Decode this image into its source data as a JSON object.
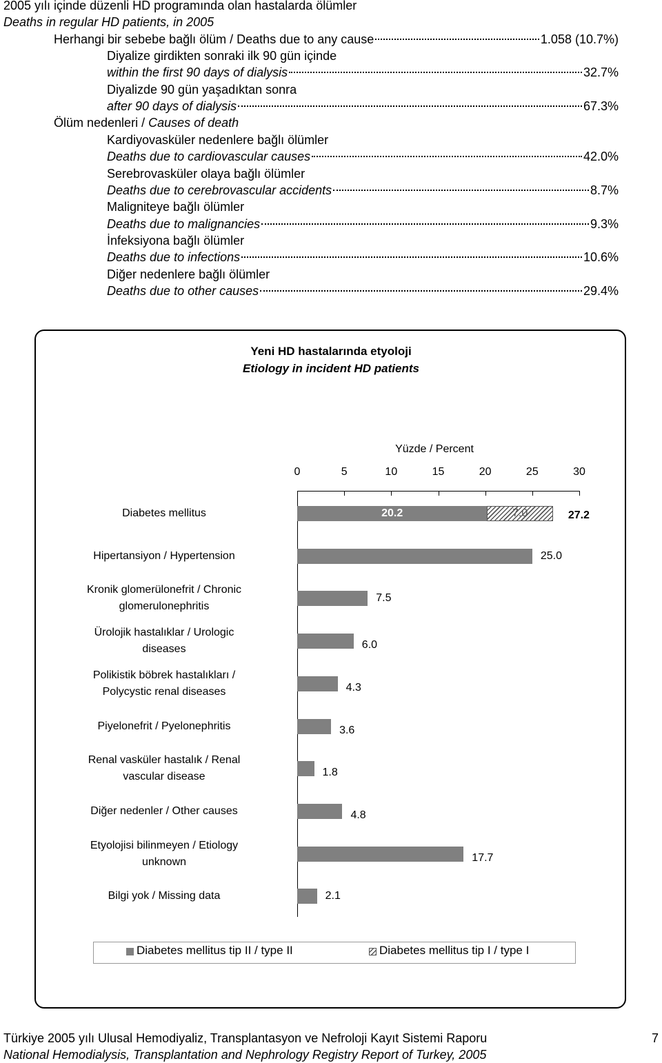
{
  "header": {
    "title": "2005 yılı içinde düzenli HD programında olan hastalarda ölümler",
    "subtitle": "Deaths in regular HD patients, in 2005"
  },
  "summary": {
    "any_cause": {
      "label": "Herhangi bir sebebe bağlı ölüm / Deaths due to any cause",
      "value": "1.058 (10.7%)"
    },
    "timing": [
      {
        "tr": "Diyalize girdikten sonraki ilk 90 gün içinde",
        "en": "within the first 90 days of dialysis",
        "value": "32.7%"
      },
      {
        "tr": "Diyalizde 90 gün yaşadıktan sonra",
        "en": "after 90 days of dialysis",
        "value": "67.3%"
      }
    ],
    "causes_heading": {
      "tr": "Ölüm nedenleri /",
      "en": "Causes of death"
    },
    "causes": [
      {
        "tr": "Kardiyovasküler nedenlere bağlı ölümler",
        "en": "Deaths due to cardiovascular causes",
        "value": "42.0%"
      },
      {
        "tr": "Serebrovasküler olaya bağlı ölümler",
        "en": "Deaths due to cerebrovascular accidents",
        "value": "8.7%"
      },
      {
        "tr": "Maligniteye bağlı ölümler",
        "en": "Deaths due to malignancies",
        "value": "9.3%"
      },
      {
        "tr": "İnfeksiyona bağlı ölümler",
        "en": "Deaths due to infections",
        "value": "10.6%"
      },
      {
        "tr": "Diğer nedenlere bağlı ölümler",
        "en": "Deaths due to other causes",
        "value": "29.4%"
      }
    ]
  },
  "chart_data": {
    "type": "bar",
    "orientation": "horizontal",
    "stacked": true,
    "title": "Yeni HD hastalarında etyoloji",
    "subtitle": "Etiology in incident HD patients",
    "xlabel": "Yüzde / Percent",
    "categories": [
      "Diabetes mellitus",
      "Hipertansiyon / Hypertension",
      "Kronik glomerülonefrit / Chronic glomerulonephritis",
      "Ürolojik hastalıklar / Urologic diseases",
      "Polikistik böbrek hastalıkları / Polycystic renal diseases",
      "Piyelonefrit / Pyelonephritis",
      "Renal vasküler hastalık / Renal vascular disease",
      "Diğer nedenler / Other causes",
      "Etyolojisi bilinmeyen / Etiology unknown",
      "Bilgi yok / Missing data"
    ],
    "series": [
      {
        "name": "Diabetes mellitus tip II / type II",
        "color": "#808080",
        "values": [
          20.2,
          25.0,
          7.5,
          6.0,
          4.3,
          3.6,
          1.8,
          4.8,
          17.7,
          2.1
        ],
        "value_labels": [
          "20.2",
          "25.0",
          "7.5",
          "6.0",
          "4.3",
          "3.6",
          "1.8",
          "4.8",
          "17.7",
          "2.1"
        ]
      },
      {
        "name": "Diabetes mellitus tip I / type I",
        "color": "hatched",
        "values": [
          7.0,
          null,
          null,
          null,
          null,
          null,
          null,
          null,
          null,
          null
        ],
        "value_labels": [
          "7.0",
          null,
          null,
          null,
          null,
          null,
          null,
          null,
          null,
          null
        ]
      }
    ],
    "total_label": "27.2",
    "xlim": [
      0,
      30
    ],
    "xticks": [
      0,
      5,
      10,
      15,
      20,
      25,
      30
    ],
    "grid": false,
    "legend": "bottom"
  },
  "footer": {
    "line1": "Türkiye 2005 yılı Ulusal Hemodiyaliz, Transplantasyon ve Nefroloji Kayıt Sistemi Raporu",
    "page": "7",
    "line2": "National Hemodialysis, Transplantation and Nephrology Registry Report of Turkey, 2005"
  }
}
